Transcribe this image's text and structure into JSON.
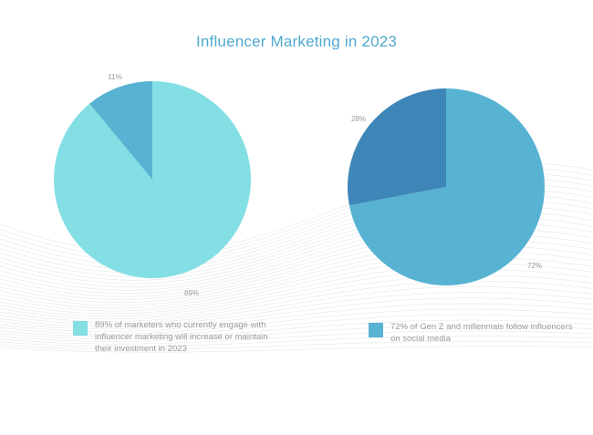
{
  "title": "Influencer Marketing in 2023",
  "colors": {
    "title": "#4fa9cf",
    "pie1_major": "#83dfe4",
    "pie1_minor": "#58b3d2",
    "pie2_major": "#58b3d2",
    "pie2_minor": "#3f86b8",
    "label": "#9a9a9a"
  },
  "chart_data": [
    {
      "type": "pie",
      "slices": [
        {
          "label": "89%",
          "value": 89
        },
        {
          "label": "11%",
          "value": 11
        }
      ],
      "legend": "89% of marketers who currently engage with influencer marketing will increase or maintain their investment in 2023"
    },
    {
      "type": "pie",
      "slices": [
        {
          "label": "72%",
          "value": 72
        },
        {
          "label": "28%",
          "value": 28
        }
      ],
      "legend": "72% of Gen Z and millennials follow influencers on social media"
    }
  ]
}
